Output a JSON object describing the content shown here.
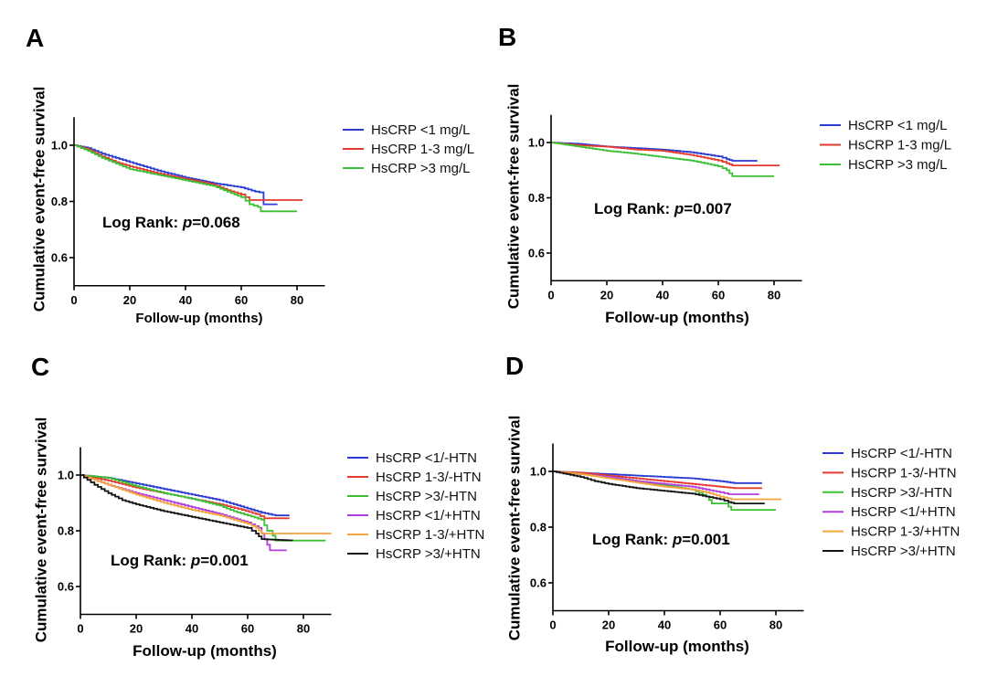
{
  "chart_data": [
    {
      "panel_label": "A",
      "type": "line",
      "interpolation": "step",
      "xlabel": "Follow-up (months)",
      "ylabel": "Cumulative event-free survival",
      "xlim": [
        0,
        90
      ],
      "ylim": [
        0.5,
        1.1
      ],
      "xticks": [
        0,
        20,
        40,
        60,
        80
      ],
      "xtick_labels": [
        "0",
        "20",
        "40",
        "60",
        "80"
      ],
      "yticks": [
        0.6,
        0.8,
        1.0
      ],
      "ytick_labels": [
        "0.6",
        "0.8",
        "1.0"
      ],
      "grid": false,
      "legend_position": "right",
      "annotation": {
        "prefix": "Log Rank: ",
        "italic": "p",
        "suffix": "=0.068"
      },
      "series": [
        {
          "name": "HsCRP <1 mg/L",
          "color": "#2a3bd1",
          "points": [
            [
              0,
              1.0
            ],
            [
              5,
              0.99
            ],
            [
              10,
              0.97
            ],
            [
              15,
              0.955
            ],
            [
              20,
              0.94
            ],
            [
              30,
              0.91
            ],
            [
              40,
              0.885
            ],
            [
              50,
              0.865
            ],
            [
              60,
              0.85
            ],
            [
              65,
              0.835
            ],
            [
              68,
              0.83
            ],
            [
              68,
              0.79
            ],
            [
              73,
              0.79
            ]
          ]
        },
        {
          "name": "HsCRP 1-3 mg/L",
          "color": "#e53a2f",
          "points": [
            [
              0,
              1.0
            ],
            [
              5,
              0.985
            ],
            [
              10,
              0.96
            ],
            [
              15,
              0.94
            ],
            [
              20,
              0.925
            ],
            [
              30,
              0.9
            ],
            [
              40,
              0.88
            ],
            [
              50,
              0.86
            ],
            [
              55,
              0.84
            ],
            [
              60,
              0.825
            ],
            [
              63,
              0.805
            ],
            [
              82,
              0.805
            ]
          ]
        },
        {
          "name": "HsCRP >3 mg/L",
          "color": "#3dbf35",
          "points": [
            [
              0,
              1.0
            ],
            [
              5,
              0.98
            ],
            [
              10,
              0.955
            ],
            [
              15,
              0.935
            ],
            [
              20,
              0.915
            ],
            [
              30,
              0.895
            ],
            [
              40,
              0.875
            ],
            [
              50,
              0.855
            ],
            [
              55,
              0.835
            ],
            [
              60,
              0.815
            ],
            [
              63,
              0.79
            ],
            [
              66,
              0.78
            ],
            [
              67,
              0.765
            ],
            [
              80,
              0.765
            ]
          ]
        }
      ]
    },
    {
      "panel_label": "B",
      "type": "line",
      "interpolation": "step",
      "xlabel": "Follow-up (months)",
      "ylabel": "Cumulative event-free survival",
      "xlim": [
        0,
        90
      ],
      "ylim": [
        0.5,
        1.1
      ],
      "xticks": [
        0,
        20,
        40,
        60,
        80
      ],
      "xtick_labels": [
        "0",
        "20",
        "40",
        "60",
        "80"
      ],
      "yticks": [
        0.6,
        0.8,
        1.0
      ],
      "ytick_labels": [
        "0.6",
        "0.8",
        "1.0"
      ],
      "grid": false,
      "legend_position": "right",
      "annotation": {
        "prefix": "Log Rank: ",
        "italic": "p",
        "suffix": "=0.007"
      },
      "series": [
        {
          "name": "HsCRP <1 mg/L",
          "color": "#2a3bd1",
          "points": [
            [
              0,
              1.0
            ],
            [
              10,
              0.995
            ],
            [
              20,
              0.985
            ],
            [
              30,
              0.98
            ],
            [
              40,
              0.974
            ],
            [
              50,
              0.965
            ],
            [
              60,
              0.95
            ],
            [
              63,
              0.94
            ],
            [
              65,
              0.934
            ],
            [
              74,
              0.934
            ]
          ]
        },
        {
          "name": "HsCRP 1-3 mg/L",
          "color": "#e53a2f",
          "points": [
            [
              0,
              1.0
            ],
            [
              10,
              0.99
            ],
            [
              20,
              0.985
            ],
            [
              30,
              0.975
            ],
            [
              40,
              0.97
            ],
            [
              50,
              0.955
            ],
            [
              55,
              0.945
            ],
            [
              60,
              0.935
            ],
            [
              63,
              0.925
            ],
            [
              65,
              0.917
            ],
            [
              82,
              0.917
            ]
          ]
        },
        {
          "name": "HsCRP >3 mg/L",
          "color": "#3dbf35",
          "points": [
            [
              0,
              1.0
            ],
            [
              10,
              0.985
            ],
            [
              20,
              0.97
            ],
            [
              30,
              0.96
            ],
            [
              40,
              0.947
            ],
            [
              50,
              0.935
            ],
            [
              55,
              0.925
            ],
            [
              60,
              0.914
            ],
            [
              63,
              0.9
            ],
            [
              65,
              0.878
            ],
            [
              80,
              0.878
            ]
          ]
        }
      ]
    },
    {
      "panel_label": "C",
      "type": "line",
      "interpolation": "step",
      "xlabel": "Follow-up (months)",
      "ylabel": "Cumulative event-free survival",
      "xlim": [
        0,
        90
      ],
      "ylim": [
        0.5,
        1.1
      ],
      "xticks": [
        0,
        20,
        40,
        60,
        80
      ],
      "xtick_labels": [
        "0",
        "20",
        "40",
        "60",
        "80"
      ],
      "yticks": [
        0.6,
        0.8,
        1.0
      ],
      "ytick_labels": [
        "0.6",
        "0.8",
        "1.0"
      ],
      "grid": false,
      "legend_position": "right",
      "annotation": {
        "prefix": "Log Rank: ",
        "italic": "p",
        "suffix": "=0.001"
      },
      "series": [
        {
          "name": "HsCRP <1/-HTN",
          "color": "#2a3bd1",
          "points": [
            [
              0,
              1.0
            ],
            [
              10,
              0.99
            ],
            [
              20,
              0.97
            ],
            [
              30,
              0.95
            ],
            [
              40,
              0.93
            ],
            [
              50,
              0.91
            ],
            [
              55,
              0.895
            ],
            [
              60,
              0.88
            ],
            [
              65,
              0.865
            ],
            [
              70,
              0.855
            ],
            [
              75,
              0.855
            ]
          ]
        },
        {
          "name": "HsCRP 1-3/-HTN",
          "color": "#e53a2f",
          "points": [
            [
              0,
              1.0
            ],
            [
              10,
              0.98
            ],
            [
              20,
              0.955
            ],
            [
              30,
              0.935
            ],
            [
              40,
              0.915
            ],
            [
              50,
              0.895
            ],
            [
              58,
              0.875
            ],
            [
              63,
              0.86
            ],
            [
              66,
              0.845
            ],
            [
              75,
              0.845
            ]
          ]
        },
        {
          "name": "HsCRP >3/-HTN",
          "color": "#3dbf35",
          "points": [
            [
              0,
              1.0
            ],
            [
              10,
              0.99
            ],
            [
              15,
              0.975
            ],
            [
              20,
              0.96
            ],
            [
              30,
              0.935
            ],
            [
              40,
              0.915
            ],
            [
              50,
              0.89
            ],
            [
              55,
              0.87
            ],
            [
              60,
              0.855
            ],
            [
              65,
              0.84
            ],
            [
              67,
              0.8
            ],
            [
              68,
              0.8
            ],
            [
              70,
              0.765
            ],
            [
              88,
              0.765
            ]
          ]
        },
        {
          "name": "HsCRP <1/+HTN",
          "color": "#b13fe0",
          "points": [
            [
              0,
              1.0
            ],
            [
              10,
              0.965
            ],
            [
              20,
              0.935
            ],
            [
              30,
              0.91
            ],
            [
              40,
              0.885
            ],
            [
              50,
              0.86
            ],
            [
              55,
              0.845
            ],
            [
              60,
              0.83
            ],
            [
              64,
              0.81
            ],
            [
              66,
              0.77
            ],
            [
              68,
              0.73
            ],
            [
              74,
              0.73
            ]
          ]
        },
        {
          "name": "HsCRP 1-3/+HTN",
          "color": "#f5a33c",
          "points": [
            [
              0,
              1.0
            ],
            [
              10,
              0.965
            ],
            [
              20,
              0.93
            ],
            [
              30,
              0.9
            ],
            [
              40,
              0.875
            ],
            [
              50,
              0.855
            ],
            [
              55,
              0.84
            ],
            [
              60,
              0.825
            ],
            [
              63,
              0.81
            ],
            [
              65,
              0.79
            ],
            [
              90,
              0.79
            ]
          ]
        },
        {
          "name": "HsCRP >3/+HTN",
          "color": "#141414",
          "points": [
            [
              0,
              1.0
            ],
            [
              5,
              0.965
            ],
            [
              10,
              0.935
            ],
            [
              15,
              0.91
            ],
            [
              20,
              0.895
            ],
            [
              30,
              0.87
            ],
            [
              40,
              0.85
            ],
            [
              50,
              0.83
            ],
            [
              55,
              0.82
            ],
            [
              60,
              0.81
            ],
            [
              63,
              0.79
            ],
            [
              65,
              0.77
            ],
            [
              76,
              0.765
            ]
          ]
        }
      ]
    },
    {
      "panel_label": "D",
      "type": "line",
      "interpolation": "step",
      "xlabel": "Follow-up (months)",
      "ylabel": "Cumulative event-free survival",
      "xlim": [
        0,
        90
      ],
      "ylim": [
        0.5,
        1.1
      ],
      "xticks": [
        0,
        20,
        40,
        60,
        80
      ],
      "xtick_labels": [
        "0",
        "20",
        "40",
        "60",
        "80"
      ],
      "yticks": [
        0.6,
        0.8,
        1.0
      ],
      "ytick_labels": [
        "0.6",
        "0.8",
        "1.0"
      ],
      "grid": false,
      "legend_position": "right",
      "annotation": {
        "prefix": "Log Rank: ",
        "italic": "p",
        "suffix": "=0.001"
      },
      "series": [
        {
          "name": "HsCRP <1/-HTN",
          "color": "#2a3bd1",
          "points": [
            [
              0,
              1.0
            ],
            [
              10,
              0.995
            ],
            [
              20,
              0.99
            ],
            [
              30,
              0.985
            ],
            [
              40,
              0.98
            ],
            [
              50,
              0.975
            ],
            [
              55,
              0.97
            ],
            [
              60,
              0.965
            ],
            [
              65,
              0.958
            ],
            [
              75,
              0.958
            ]
          ]
        },
        {
          "name": "HsCRP 1-3/-HTN",
          "color": "#e53a2f",
          "points": [
            [
              0,
              1.0
            ],
            [
              10,
              0.995
            ],
            [
              20,
              0.985
            ],
            [
              30,
              0.975
            ],
            [
              40,
              0.965
            ],
            [
              50,
              0.955
            ],
            [
              55,
              0.95
            ],
            [
              60,
              0.945
            ],
            [
              65,
              0.94
            ],
            [
              75,
              0.94
            ]
          ]
        },
        {
          "name": "HsCRP >3/-HTN",
          "color": "#3dbf35",
          "points": [
            [
              0,
              1.0
            ],
            [
              10,
              0.99
            ],
            [
              20,
              0.98
            ],
            [
              30,
              0.965
            ],
            [
              40,
              0.95
            ],
            [
              50,
              0.935
            ],
            [
              55,
              0.91
            ],
            [
              57,
              0.885
            ],
            [
              62,
              0.885
            ],
            [
              64,
              0.862
            ],
            [
              80,
              0.862
            ]
          ]
        },
        {
          "name": "HsCRP <1/+HTN",
          "color": "#b13fe0",
          "points": [
            [
              0,
              1.0
            ],
            [
              10,
              0.99
            ],
            [
              20,
              0.98
            ],
            [
              30,
              0.965
            ],
            [
              40,
              0.955
            ],
            [
              50,
              0.945
            ],
            [
              55,
              0.935
            ],
            [
              60,
              0.925
            ],
            [
              63,
              0.918
            ],
            [
              74,
              0.918
            ]
          ]
        },
        {
          "name": "HsCRP 1-3/+HTN",
          "color": "#f5a33c",
          "points": [
            [
              0,
              1.0
            ],
            [
              10,
              0.99
            ],
            [
              20,
              0.975
            ],
            [
              30,
              0.96
            ],
            [
              40,
              0.945
            ],
            [
              50,
              0.935
            ],
            [
              55,
              0.925
            ],
            [
              60,
              0.91
            ],
            [
              64,
              0.9
            ],
            [
              82,
              0.9
            ]
          ]
        },
        {
          "name": "HsCRP >3/+HTN",
          "color": "#141414",
          "points": [
            [
              0,
              1.0
            ],
            [
              10,
              0.98
            ],
            [
              15,
              0.965
            ],
            [
              20,
              0.955
            ],
            [
              30,
              0.94
            ],
            [
              40,
              0.93
            ],
            [
              50,
              0.92
            ],
            [
              55,
              0.91
            ],
            [
              60,
              0.9
            ],
            [
              63,
              0.89
            ],
            [
              65,
              0.885
            ],
            [
              76,
              0.885
            ]
          ]
        }
      ]
    }
  ]
}
